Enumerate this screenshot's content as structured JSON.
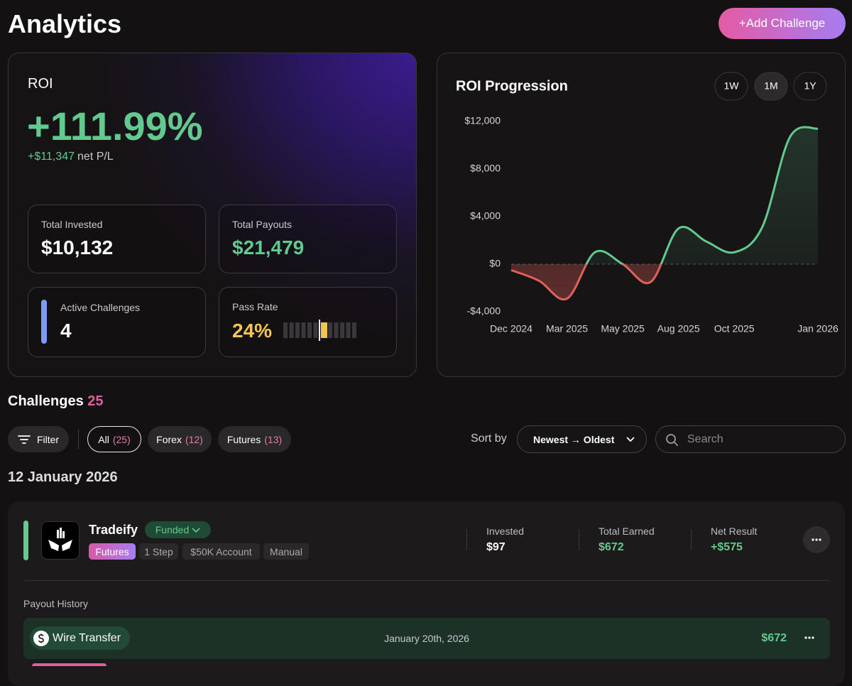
{
  "header": {
    "title": "Analytics",
    "add_button": "+Add Challenge"
  },
  "roi_card": {
    "label": "ROI",
    "value": "+111.99%",
    "net_pl": "+$11,347",
    "net_pl_suffix": "net P/L",
    "stats": [
      {
        "label": "Total Invested",
        "value": "$10,132"
      },
      {
        "label": "Total Payouts",
        "value": "$21,479"
      },
      {
        "label": "Active Challenges",
        "value": "4"
      },
      {
        "label": "Pass Rate",
        "value": "24%"
      }
    ]
  },
  "chart_data": {
    "type": "line",
    "title": "ROI Progression",
    "ranges": [
      "1W",
      "1M",
      "1Y"
    ],
    "categories": [
      "Dec 2024",
      null,
      "Mar 2025",
      null,
      "May 2025",
      null,
      "Aug 2025",
      null,
      "Oct 2025",
      null,
      null,
      "Jan 2026"
    ],
    "values": [
      -500,
      -1400,
      -2900,
      1000,
      0,
      -1500,
      3000,
      1900,
      1000,
      3100,
      10700,
      11400
    ],
    "color_positive": "#62c98f",
    "color_negative": "#e0605a",
    "ylim": [
      -4000,
      12000
    ],
    "yticks": [
      {
        "value": -4000,
        "label": "-$4,000"
      },
      {
        "value": 0,
        "label": "$0"
      },
      {
        "value": 4000,
        "label": "$4,000"
      },
      {
        "value": 8000,
        "label": "$8,000"
      },
      {
        "value": 12000,
        "label": "$12,000"
      }
    ]
  },
  "challenges": {
    "title": "Challenges",
    "count": "25",
    "filter": "Filter",
    "tabs": [
      {
        "name": "All",
        "count": "(25)"
      },
      {
        "name": "Forex",
        "count": "(12)"
      },
      {
        "name": "Futures",
        "count": "(13)"
      }
    ],
    "sort_label": "Sort by",
    "sort_value": "Newest → Oldest",
    "search_placeholder": "Search",
    "groups": [
      {
        "date": "12 January 2026",
        "items": [
          {
            "name": "Tradeify",
            "status": "Funded",
            "tags": [
              "Futures",
              "1 Step",
              "$50K Account",
              "Manual"
            ],
            "metrics": [
              {
                "label": "Invested",
                "value": "$97"
              },
              {
                "label": "Total Earned",
                "value": "$672"
              },
              {
                "label": "Net Result",
                "value": "+$575"
              }
            ],
            "payout_history_label": "Payout History",
            "payouts": [
              {
                "method": "Wire Transfer",
                "date": "January 20th, 2026",
                "amount": "$672"
              }
            ]
          }
        ]
      }
    ]
  }
}
